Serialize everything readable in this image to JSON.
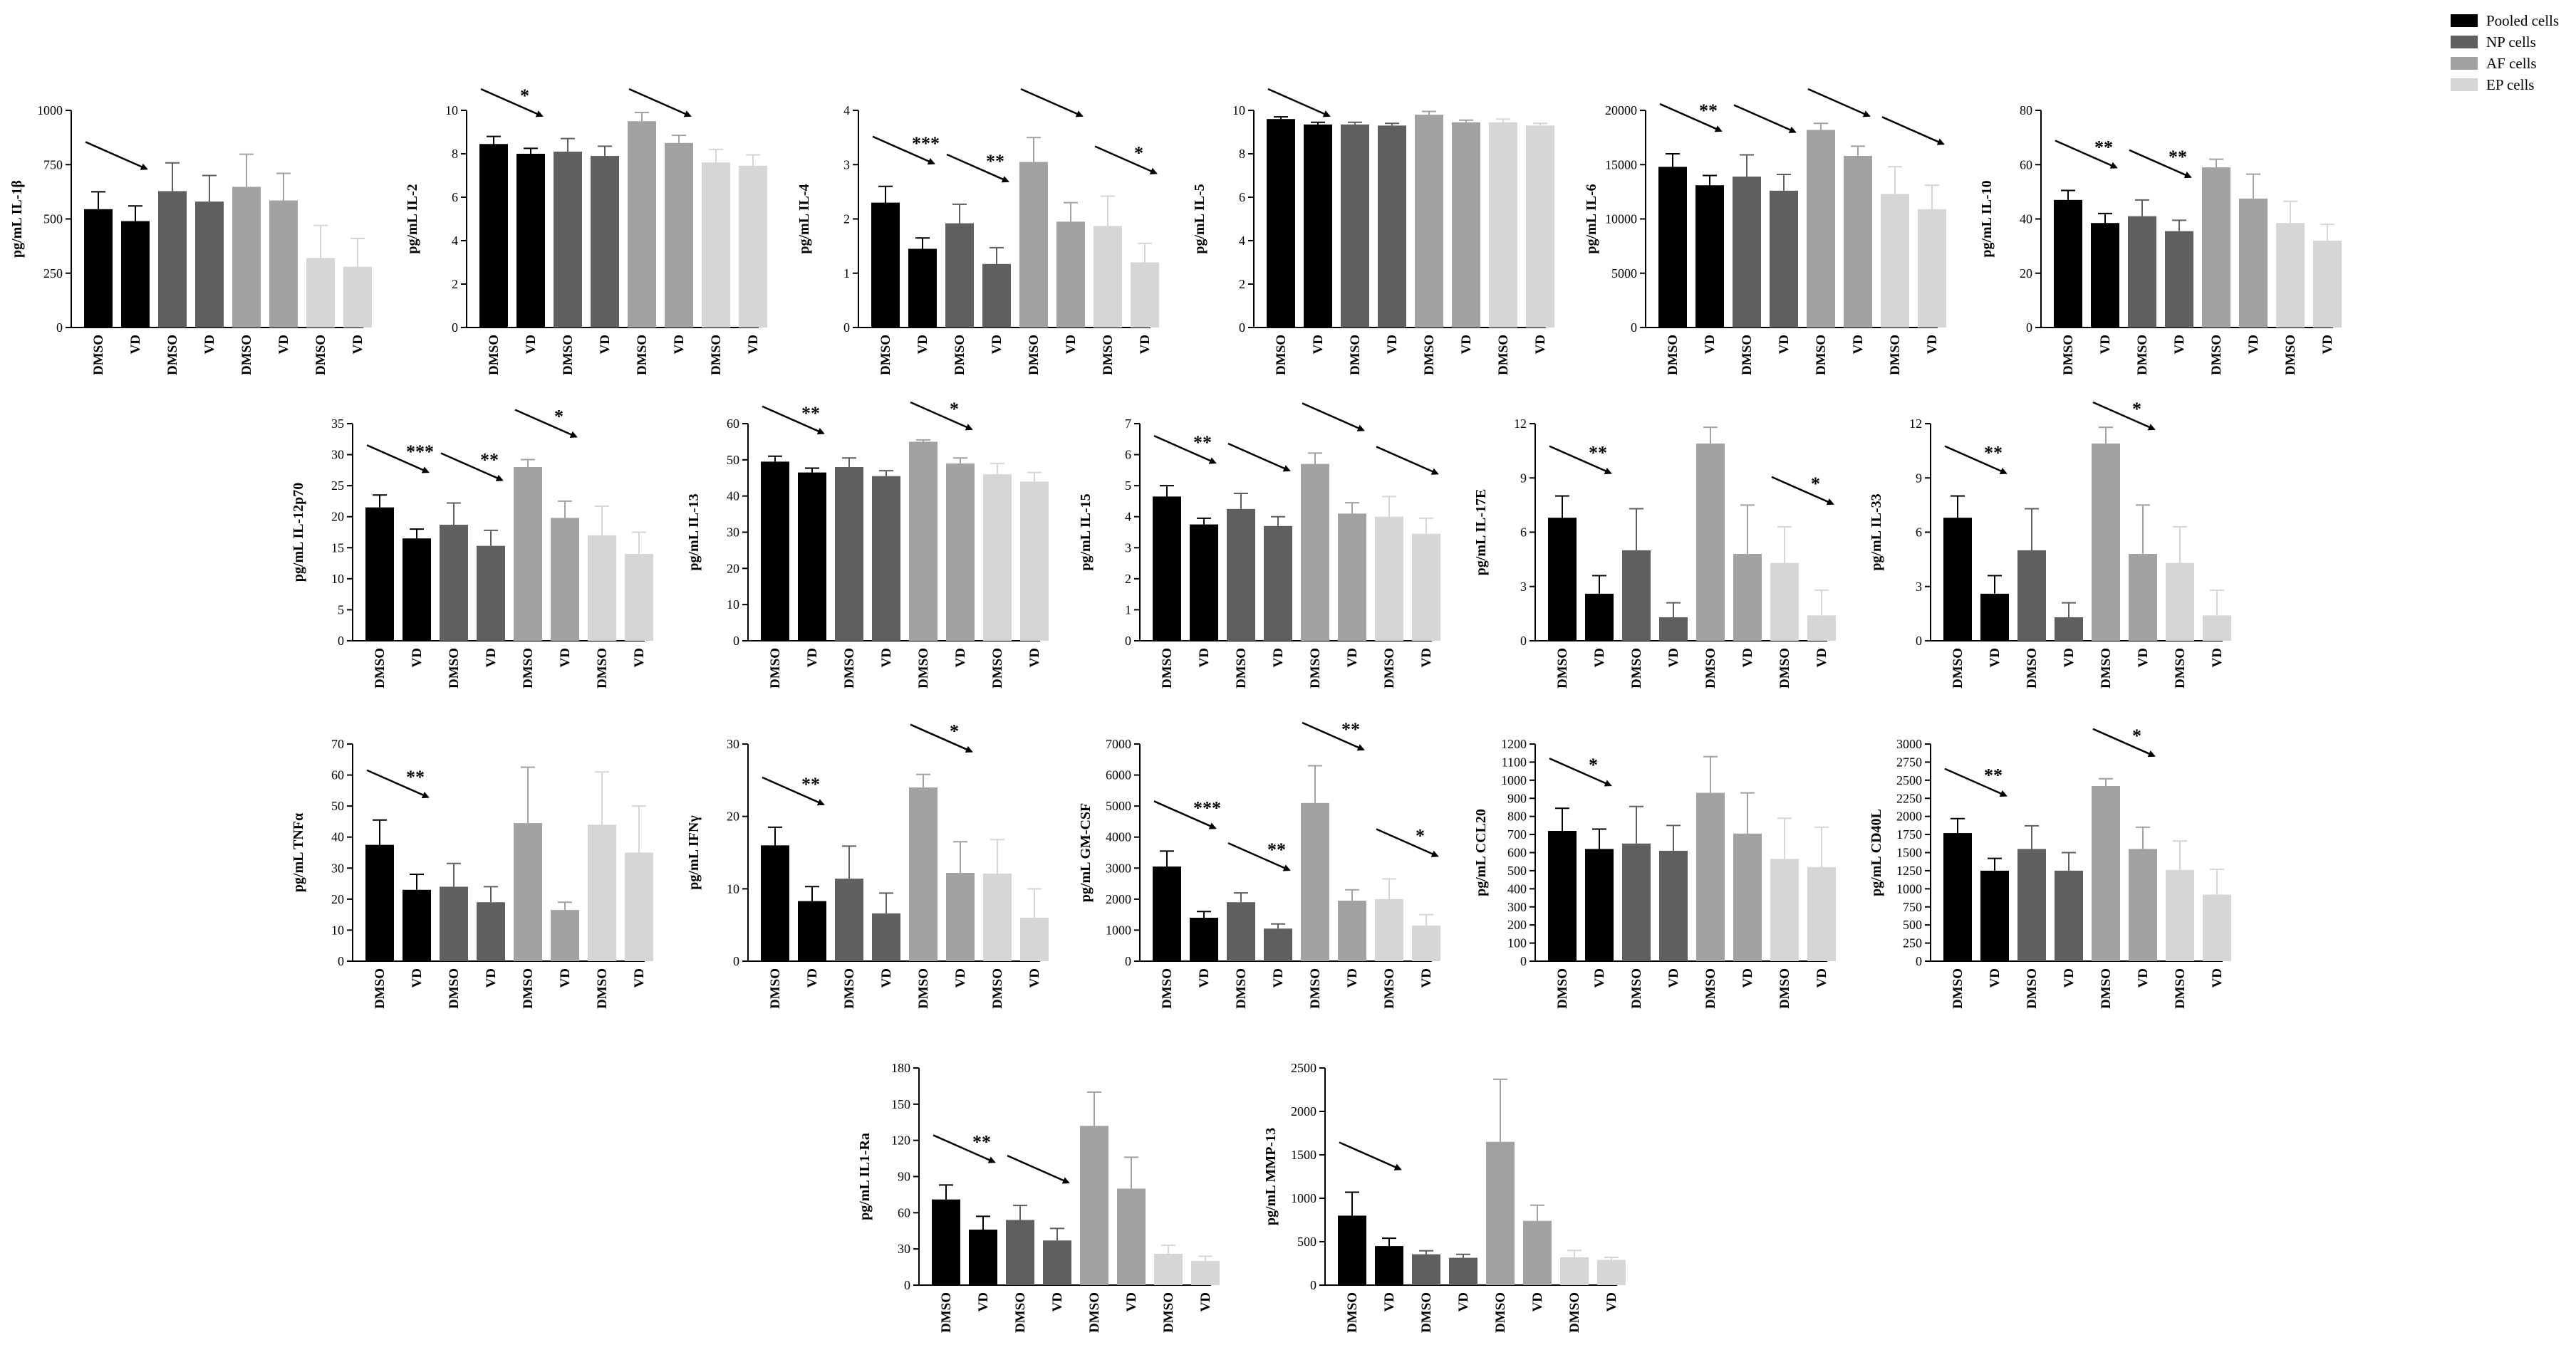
{
  "colors": {
    "Pooled cells": "#000000",
    "NP cells": "#5f5f5f",
    "AF cells": "#a2a2a2",
    "EP cells": "#d6d6d6",
    "axis": "#000000"
  },
  "legend": {
    "placement": "top-right",
    "items": [
      {
        "label": "Pooled cells",
        "color": "#000000"
      },
      {
        "label": "NP cells",
        "color": "#5f5f5f"
      },
      {
        "label": "AF cells",
        "color": "#a2a2a2"
      },
      {
        "label": "EP cells",
        "color": "#d6d6d6"
      }
    ]
  },
  "chart_data": [
    {
      "type": "bar",
      "ylabel": "pg/mL IL-1β",
      "ylim": [
        0,
        1000
      ],
      "yticks": [
        0,
        250,
        500,
        750,
        1000
      ],
      "categories": [
        "DMSO",
        "VD",
        "DMSO",
        "VD",
        "DMSO",
        "VD",
        "DMSO",
        "VD"
      ],
      "values": [
        545,
        490,
        628,
        580,
        648,
        585,
        320,
        280
      ],
      "errors": [
        80,
        70,
        130,
        120,
        150,
        125,
        150,
        130
      ],
      "annotations": [
        {
          "pair": 0,
          "label": ""
        }
      ]
    },
    {
      "type": "bar",
      "ylabel": "pg/mL IL-2",
      "ylim": [
        0,
        10
      ],
      "yticks": [
        0,
        2,
        4,
        6,
        8,
        10
      ],
      "categories": [
        "DMSO",
        "VD",
        "DMSO",
        "VD",
        "DMSO",
        "VD",
        "DMSO",
        "VD"
      ],
      "values": [
        8.45,
        8.0,
        8.1,
        7.9,
        9.5,
        8.5,
        7.6,
        7.45
      ],
      "errors": [
        0.35,
        0.25,
        0.6,
        0.45,
        0.4,
        0.35,
        0.6,
        0.5
      ],
      "annotations": [
        {
          "pair": 0,
          "label": "*"
        },
        {
          "pair": 2,
          "label": ""
        }
      ]
    },
    {
      "type": "bar",
      "ylabel": "pg/mL IL-4",
      "ylim": [
        0,
        4
      ],
      "yticks": [
        0,
        1,
        2,
        3,
        4
      ],
      "categories": [
        "DMSO",
        "VD",
        "DMSO",
        "VD",
        "DMSO",
        "VD",
        "DMSO",
        "VD"
      ],
      "values": [
        2.3,
        1.45,
        1.92,
        1.17,
        3.05,
        1.95,
        1.87,
        1.2
      ],
      "errors": [
        0.3,
        0.2,
        0.35,
        0.3,
        0.45,
        0.35,
        0.55,
        0.35
      ],
      "annotations": [
        {
          "pair": 0,
          "label": "***"
        },
        {
          "pair": 1,
          "label": "**"
        },
        {
          "pair": 2,
          "label": ""
        },
        {
          "pair": 3,
          "label": "*"
        }
      ]
    },
    {
      "type": "bar",
      "ylabel": "pg/mL IL-5",
      "ylim": [
        0,
        10
      ],
      "yticks": [
        0,
        2,
        4,
        6,
        8,
        10
      ],
      "categories": [
        "DMSO",
        "VD",
        "DMSO",
        "VD",
        "DMSO",
        "VD",
        "DMSO",
        "VD"
      ],
      "values": [
        9.6,
        9.35,
        9.35,
        9.3,
        9.8,
        9.45,
        9.45,
        9.3
      ],
      "errors": [
        0.1,
        0.1,
        0.1,
        0.1,
        0.15,
        0.1,
        0.15,
        0.1
      ],
      "annotations": [
        {
          "pair": 0,
          "label": ""
        }
      ]
    },
    {
      "type": "bar",
      "ylabel": "pg/mL IL-6",
      "ylim": [
        0,
        20000
      ],
      "yticks": [
        0,
        5000,
        10000,
        15000,
        20000
      ],
      "categories": [
        "DMSO",
        "VD",
        "DMSO",
        "VD",
        "DMSO",
        "VD",
        "DMSO",
        "VD"
      ],
      "values": [
        14800,
        13100,
        13900,
        12600,
        18200,
        15800,
        12300,
        10900
      ],
      "errors": [
        1200,
        900,
        2000,
        1500,
        600,
        900,
        2500,
        2200
      ],
      "annotations": [
        {
          "pair": 0,
          "label": "**"
        },
        {
          "pair": 1,
          "label": ""
        },
        {
          "pair": 2,
          "label": ""
        },
        {
          "pair": 3,
          "label": ""
        }
      ]
    },
    {
      "type": "bar",
      "ylabel": "pg/mL IL-10",
      "ylim": [
        0,
        80
      ],
      "yticks": [
        0,
        20,
        40,
        60,
        80
      ],
      "categories": [
        "DMSO",
        "VD",
        "DMSO",
        "VD",
        "DMSO",
        "VD",
        "DMSO",
        "VD"
      ],
      "values": [
        47,
        38.5,
        41,
        35.5,
        59,
        47.5,
        38.5,
        32
      ],
      "errors": [
        3.5,
        3.5,
        6,
        4,
        3,
        9,
        8,
        6
      ],
      "annotations": [
        {
          "pair": 0,
          "label": "**"
        },
        {
          "pair": 1,
          "label": "**"
        }
      ]
    },
    {
      "type": "bar",
      "ylabel": "pg/mL IL-12p70",
      "ylim": [
        0,
        35
      ],
      "yticks": [
        0,
        5,
        10,
        15,
        20,
        25,
        30,
        35
      ],
      "categories": [
        "DMSO",
        "VD",
        "DMSO",
        "VD",
        "DMSO",
        "VD",
        "DMSO",
        "VD"
      ],
      "values": [
        21.5,
        16.5,
        18.7,
        15.3,
        28,
        19.8,
        17,
        14
      ],
      "errors": [
        2,
        1.5,
        3.5,
        2.5,
        1.2,
        2.7,
        4.7,
        3.5
      ],
      "annotations": [
        {
          "pair": 0,
          "label": "***"
        },
        {
          "pair": 1,
          "label": "**"
        },
        {
          "pair": 2,
          "label": "*"
        }
      ]
    },
    {
      "type": "bar",
      "ylabel": "pg/mL IL-13",
      "ylim": [
        0,
        60
      ],
      "yticks": [
        0,
        10,
        20,
        30,
        40,
        50,
        60
      ],
      "categories": [
        "DMSO",
        "VD",
        "DMSO",
        "VD",
        "DMSO",
        "VD",
        "DMSO",
        "VD"
      ],
      "values": [
        49.5,
        46.5,
        48,
        45.5,
        55,
        49,
        46,
        44
      ],
      "errors": [
        1.5,
        1.2,
        2.5,
        1.5,
        0.5,
        1.5,
        3,
        2.5
      ],
      "annotations": [
        {
          "pair": 0,
          "label": "**"
        },
        {
          "pair": 2,
          "label": "*"
        }
      ]
    },
    {
      "type": "bar",
      "ylabel": "pg/mL IL-15",
      "ylim": [
        0,
        7
      ],
      "yticks": [
        0,
        1,
        2,
        3,
        4,
        5,
        6,
        7
      ],
      "categories": [
        "DMSO",
        "VD",
        "DMSO",
        "VD",
        "DMSO",
        "VD",
        "DMSO",
        "VD"
      ],
      "values": [
        4.65,
        3.75,
        4.25,
        3.7,
        5.7,
        4.1,
        4.0,
        3.45
      ],
      "errors": [
        0.35,
        0.2,
        0.5,
        0.3,
        0.35,
        0.35,
        0.65,
        0.5
      ],
      "annotations": [
        {
          "pair": 0,
          "label": "**"
        },
        {
          "pair": 1,
          "label": ""
        },
        {
          "pair": 2,
          "label": ""
        },
        {
          "pair": 3,
          "label": ""
        }
      ]
    },
    {
      "type": "bar",
      "ylabel": "pg/mL IL-17E",
      "ylim": [
        0,
        12
      ],
      "yticks": [
        0,
        3,
        6,
        9,
        12
      ],
      "categories": [
        "DMSO",
        "VD",
        "DMSO",
        "VD",
        "DMSO",
        "VD",
        "DMSO",
        "VD"
      ],
      "values": [
        6.8,
        2.6,
        5.0,
        1.3,
        10.9,
        4.8,
        4.3,
        1.4
      ],
      "errors": [
        1.2,
        1.0,
        2.3,
        0.8,
        0.9,
        2.7,
        2.0,
        1.4
      ],
      "annotations": [
        {
          "pair": 0,
          "label": "**"
        },
        {
          "pair": 3,
          "label": "*"
        }
      ]
    },
    {
      "type": "bar",
      "ylabel": "pg/mL IL-33",
      "ylim": [
        0,
        12
      ],
      "yticks": [
        0,
        3,
        6,
        9,
        12
      ],
      "categories": [
        "DMSO",
        "VD",
        "DMSO",
        "VD",
        "DMSO",
        "VD",
        "DMSO",
        "VD"
      ],
      "values": [
        6.8,
        2.6,
        5.0,
        1.3,
        10.9,
        4.8,
        4.3,
        1.4
      ],
      "errors": [
        1.2,
        1.0,
        2.3,
        0.8,
        0.9,
        2.7,
        2.0,
        1.4
      ],
      "annotations": [
        {
          "pair": 0,
          "label": "**"
        },
        {
          "pair": 2,
          "label": "*"
        }
      ]
    },
    {
      "type": "bar",
      "ylabel": "pg/mL TNFα",
      "ylim": [
        0,
        70
      ],
      "yticks": [
        0,
        10,
        20,
        30,
        40,
        50,
        60,
        70
      ],
      "categories": [
        "DMSO",
        "VD",
        "DMSO",
        "VD",
        "DMSO",
        "VD",
        "DMSO",
        "VD"
      ],
      "values": [
        37.5,
        23,
        24,
        19,
        44.5,
        16.5,
        44,
        35
      ],
      "errors": [
        8,
        5,
        7.5,
        5,
        18,
        2.5,
        17,
        15
      ],
      "annotations": [
        {
          "pair": 0,
          "label": "**"
        }
      ]
    },
    {
      "type": "bar",
      "ylabel": "pg/mL IFNγ",
      "ylim": [
        0,
        30
      ],
      "yticks": [
        0,
        10,
        20,
        30
      ],
      "categories": [
        "DMSO",
        "VD",
        "DMSO",
        "VD",
        "DMSO",
        "VD",
        "DMSO",
        "VD"
      ],
      "values": [
        16,
        8.3,
        11.4,
        6.6,
        24,
        12.2,
        12.1,
        6
      ],
      "errors": [
        2.5,
        2,
        4.5,
        2.8,
        1.8,
        4.3,
        4.7,
        4
      ],
      "annotations": [
        {
          "pair": 0,
          "label": "**"
        },
        {
          "pair": 2,
          "label": "*"
        }
      ]
    },
    {
      "type": "bar",
      "ylabel": "pg/mL GM-CSF",
      "ylim": [
        0,
        7000
      ],
      "yticks": [
        0,
        1000,
        2000,
        3000,
        4000,
        5000,
        6000,
        7000
      ],
      "categories": [
        "DMSO",
        "VD",
        "DMSO",
        "VD",
        "DMSO",
        "VD",
        "DMSO",
        "VD"
      ],
      "values": [
        3050,
        1400,
        1900,
        1050,
        5100,
        1950,
        2000,
        1150
      ],
      "errors": [
        500,
        200,
        300,
        150,
        1200,
        350,
        650,
        350
      ],
      "annotations": [
        {
          "pair": 0,
          "label": "***"
        },
        {
          "pair": 1,
          "label": "**"
        },
        {
          "pair": 2,
          "label": "**"
        },
        {
          "pair": 3,
          "label": "*"
        }
      ]
    },
    {
      "type": "bar",
      "ylabel": "pg/mL CCL20",
      "ylim": [
        0,
        1200
      ],
      "yticks": [
        0,
        100,
        200,
        300,
        400,
        500,
        600,
        700,
        800,
        900,
        1000,
        1100,
        1200
      ],
      "categories": [
        "DMSO",
        "VD",
        "DMSO",
        "VD",
        "DMSO",
        "VD",
        "DMSO",
        "VD"
      ],
      "values": [
        720,
        620,
        650,
        610,
        930,
        705,
        565,
        520
      ],
      "errors": [
        125,
        110,
        205,
        140,
        200,
        225,
        225,
        220
      ],
      "annotations": [
        {
          "pair": 0,
          "label": "*"
        }
      ]
    },
    {
      "type": "bar",
      "ylabel": "pg/mL CD40L",
      "ylim": [
        0,
        3000
      ],
      "yticks": [
        0,
        250,
        500,
        750,
        1000,
        1250,
        1500,
        1750,
        2000,
        2250,
        2500,
        2750,
        3000
      ],
      "categories": [
        "DMSO",
        "VD",
        "DMSO",
        "VD",
        "DMSO",
        "VD",
        "DMSO",
        "VD"
      ],
      "values": [
        1770,
        1250,
        1550,
        1250,
        2420,
        1550,
        1260,
        920
      ],
      "errors": [
        200,
        170,
        320,
        250,
        100,
        300,
        400,
        350
      ],
      "annotations": [
        {
          "pair": 0,
          "label": "**"
        },
        {
          "pair": 2,
          "label": "*"
        }
      ]
    },
    {
      "type": "bar",
      "ylabel": "pg/mL IL1-Ra",
      "ylim": [
        0,
        180
      ],
      "yticks": [
        0,
        30,
        60,
        90,
        120,
        150,
        180
      ],
      "categories": [
        "DMSO",
        "VD",
        "DMSO",
        "VD",
        "DMSO",
        "VD",
        "DMSO",
        "VD"
      ],
      "values": [
        71,
        46,
        54,
        37,
        132,
        80,
        26,
        20
      ],
      "errors": [
        12,
        11,
        12,
        10,
        28,
        26,
        7,
        4
      ],
      "annotations": [
        {
          "pair": 0,
          "label": "**"
        },
        {
          "pair": 1,
          "label": ""
        }
      ]
    },
    {
      "type": "bar",
      "ylabel": "pg/mL MMP-13",
      "ylim": [
        0,
        2500
      ],
      "yticks": [
        0,
        500,
        1000,
        1500,
        2000,
        2500
      ],
      "categories": [
        "DMSO",
        "VD",
        "DMSO",
        "VD",
        "DMSO",
        "VD",
        "DMSO",
        "VD"
      ],
      "values": [
        800,
        450,
        355,
        315,
        1650,
        740,
        320,
        290
      ],
      "errors": [
        270,
        90,
        40,
        40,
        720,
        180,
        80,
        30
      ],
      "annotations": [
        {
          "pair": 0,
          "label": ""
        }
      ]
    }
  ]
}
